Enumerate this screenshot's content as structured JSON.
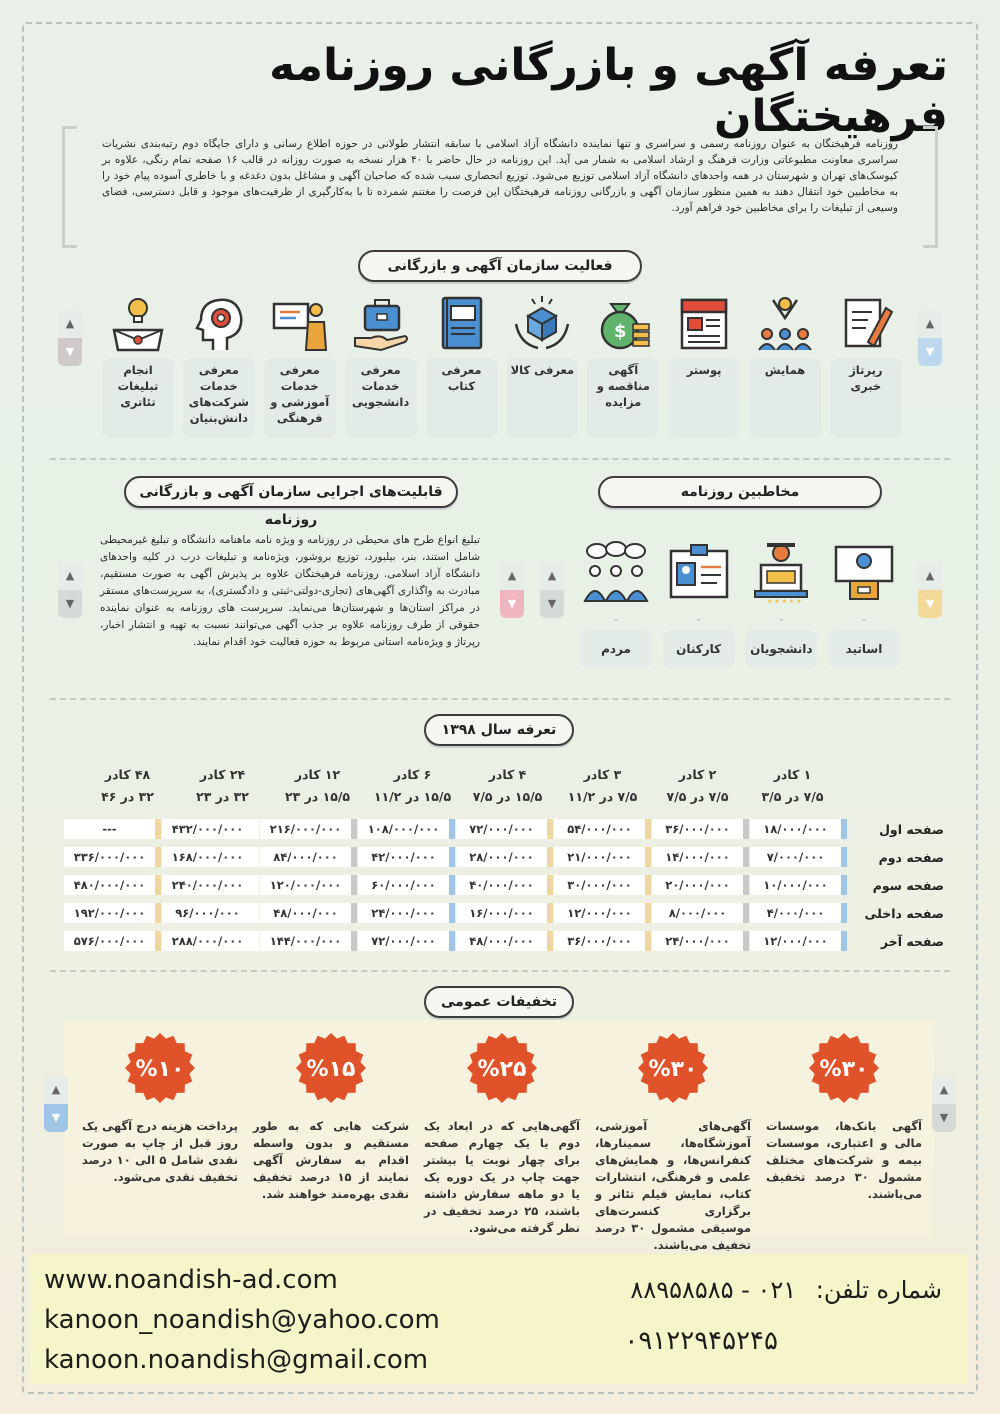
{
  "title": "تعرفه آگهی و بازرگانی روزنامه فرهیختگان",
  "intro": "روزنامه فرهیختگان به عنوان روزنامه رسمی و سراسری و تنها نماینده دانشگاه آزاد اسلامی با سابقه انتشار طولانی در حوزه اطلاع رسانی و دارای جایگاه دوم رتبه‌بندی نشریات سراسری معاونت مطبوعاتی وزارت فرهنگ و ارشاد اسلامی به شمار می آید. این روزنامه در حال حاضر با ۴۰ هزار نسخه به صورت روزانه در قالب ۱۶ صفحه تمام رنگی، علاوه بر کیوسک‌های تهران و شهرستان در همه واحدهای دانشگاه آزاد اسلامی توزیع می‌شود. توزیع انحصاری سبب شده که صاحبان آگهی و مشاغل بدون دغدغه و با خاطری آسوده پیام خود را به مخاطبین خود انتقال دهند به همین منظور سازمان آگهی و بازرگانی روزنامه فرهیختگان این فرصت را مغتنم شمرده تا با به‌کارگیری از ظرفیت‌های موجود و قابل دسترسی، فضای وسیعی از تبلیغات را برای مخاطبین خود فراهم آورد.",
  "activity": {
    "heading": "فعالیت سازمان آگهی و بازرگانی",
    "items": [
      {
        "label": "رپرتاژ خبری",
        "icon": "pen-paper-icon"
      },
      {
        "label": "همایش",
        "icon": "conference-people-icon"
      },
      {
        "label": "پوستر",
        "icon": "poster-icon"
      },
      {
        "label": "آگهی مناقصه و مزایده",
        "icon": "money-bag-icon"
      },
      {
        "label": "معرفی کالا",
        "icon": "product-hands-icon"
      },
      {
        "label": "معرفی کتاب",
        "icon": "book-icon"
      },
      {
        "label": "معرفی خدمات دانشجویی",
        "icon": "briefcase-hand-icon"
      },
      {
        "label": "معرفی خدمات آموزشی و فرهنگی",
        "icon": "teacher-board-icon"
      },
      {
        "label": "معرفی خدمات شرکت‌های دانش‌بنیان",
        "icon": "gear-head-icon"
      },
      {
        "label": "انجام تبلیغات تئاتری",
        "icon": "stage-bulb-icon"
      }
    ]
  },
  "capabilities": {
    "heading": "قابلیت‌های اجرایی سازمان آگهی و بازرگانی روزنامه",
    "text": "تبلیغ انواع طرح های محیطی در روزنامه و ویژه نامه ماهنامه دانشگاه و تبلیغ غیرمحیطی شامل استند، بنر، بیلبورد، توزیع بروشور، ویژه‌نامه و تبلیغات درب در کلیه واحدهای دانشگاه آزاد اسلامی. روزنامه فرهیختگان علاوه بر پذیرش آگهی به صورت مستقیم، مبادرت به واگذاری آگهی‌های (تجاری-دولتی-ثبتی و دادگستری)، به سرپرست‌های مستقر در مراکز استان‌ها و شهرستان‌ها می‌نماید. سرپرست های روزنامه به عنوان نماینده حقوقی از طرف روزنامه علاوه بر جذب آگهی می‌توانند نسبت به تهیه و انتشار اخبار، رپرتاژ و ویژه‌نامه استانی مربوط به حوزه فعالیت خود اقدام نمایند."
  },
  "audience": {
    "heading": "مخاطبین روزنامه",
    "items": [
      {
        "label": "اساتید",
        "icon": "lecturer-icon"
      },
      {
        "label": "دانشجویان",
        "icon": "student-laptop-icon"
      },
      {
        "label": "کارکنان",
        "icon": "id-card-icon"
      },
      {
        "label": "مردم",
        "icon": "people-chat-icon"
      }
    ]
  },
  "tariff": {
    "heading": "تعرفه سال ۱۳۹۸",
    "columns": [
      {
        "top": "۱ کادر",
        "size": "۷/۵ در ۳/۵"
      },
      {
        "top": "۲ کادر",
        "size": "۷/۵ در ۷/۵"
      },
      {
        "top": "۳ کادر",
        "size": "۷/۵ در ۱۱/۲"
      },
      {
        "top": "۴ کادر",
        "size": "۱۵/۵ در ۷/۵"
      },
      {
        "top": "۶ کادر",
        "size": "۱۵/۵ در ۱۱/۲"
      },
      {
        "top": "۱۲ کادر",
        "size": "۱۵/۵ در ۲۳"
      },
      {
        "top": "۲۴ کادر",
        "size": "۳۲ در ۲۳"
      },
      {
        "top": "۴۸ کادر",
        "size": "۳۲ در ۴۶"
      }
    ],
    "rows": [
      {
        "label": "صفحه اول",
        "values": [
          "۱۸/۰۰۰/۰۰۰",
          "۳۶/۰۰۰/۰۰۰",
          "۵۴/۰۰۰/۰۰۰",
          "۷۲/۰۰۰/۰۰۰",
          "۱۰۸/۰۰۰/۰۰۰",
          "۲۱۶/۰۰۰/۰۰۰",
          "۴۳۲/۰۰۰/۰۰۰",
          "---"
        ]
      },
      {
        "label": "صفحه دوم",
        "values": [
          "۷/۰۰۰/۰۰۰",
          "۱۴/۰۰۰/۰۰۰",
          "۲۱/۰۰۰/۰۰۰",
          "۲۸/۰۰۰/۰۰۰",
          "۴۲/۰۰۰/۰۰۰",
          "۸۴/۰۰۰/۰۰۰",
          "۱۶۸/۰۰۰/۰۰۰",
          "۳۳۶/۰۰۰/۰۰۰"
        ]
      },
      {
        "label": "صفحه سوم",
        "values": [
          "۱۰/۰۰۰/۰۰۰",
          "۲۰/۰۰۰/۰۰۰",
          "۳۰/۰۰۰/۰۰۰",
          "۴۰/۰۰۰/۰۰۰",
          "۶۰/۰۰۰/۰۰۰",
          "۱۲۰/۰۰۰/۰۰۰",
          "۲۴۰/۰۰۰/۰۰۰",
          "۴۸۰/۰۰۰/۰۰۰"
        ]
      },
      {
        "label": "صفحه داخلی",
        "values": [
          "۴/۰۰۰/۰۰۰",
          "۸/۰۰۰/۰۰۰",
          "۱۲/۰۰۰/۰۰۰",
          "۱۶/۰۰۰/۰۰۰",
          "۲۴/۰۰۰/۰۰۰",
          "۴۸/۰۰۰/۰۰۰",
          "۹۶/۰۰۰/۰۰۰",
          "۱۹۲/۰۰۰/۰۰۰"
        ]
      },
      {
        "label": "صفحه آخر",
        "values": [
          "۱۲/۰۰۰/۰۰۰",
          "۲۴/۰۰۰/۰۰۰",
          "۳۶/۰۰۰/۰۰۰",
          "۴۸/۰۰۰/۰۰۰",
          "۷۲/۰۰۰/۰۰۰",
          "۱۴۴/۰۰۰/۰۰۰",
          "۲۸۸/۰۰۰/۰۰۰",
          "۵۷۶/۰۰۰/۰۰۰"
        ]
      }
    ],
    "column_colors": [
      "#9fc6e6",
      "#c9c9c9",
      "#f0d7a0",
      "#f0d7a0",
      "#9fc6e6",
      "#c9c9c9",
      "#ffffff",
      "#f0d7a0"
    ]
  },
  "discounts": {
    "heading": "تخفیفات عمومی",
    "items": [
      {
        "badge": "%۳۰",
        "text": "آگهی بانک‌ها، موسسات مالی و اعتباری، موسسات بیمه و شرکت‌های مختلف مشمول ۳۰ درصد تخفیف می‌باشند."
      },
      {
        "badge": "%۳۰",
        "text": "آگهی‌های آموزشی، آموزشگاه‌ها، سمینارها، کنفرانس‌ها، و همایش‌های علمی و فرهنگی، انتشارات کتاب، نمایش فیلم تئاتر و برگزاری کنسرت‌های موسیقی مشمول ۳۰ درصد تخفیف می‌باشند."
      },
      {
        "badge": "%۲۵",
        "text": "آگهی‌هایی که در ابعاد یک دوم یا یک چهارم صفحه برای چهار نوبت یا بیشتر جهت چاپ در یک دوره یک یا دو ماهه سفارش داشته باشند، ۲۵ درصد تخفیف در نظر گرفته می‌شود."
      },
      {
        "badge": "%۱۵",
        "text": "شرکت هایی که به طور مستقیم و بدون واسطه اقدام به سفارش آگهی نمایند از ۱۵ درصد تخفیف نقدی بهره‌مند خواهند شد."
      },
      {
        "badge": "%۱۰",
        "text": "پرداخت هزینه درج آگهی یک روز قبل از چاپ به صورت نقدی شامل ۵ الی ۱۰ درصد تخفیف نقدی می‌شود."
      }
    ],
    "badge_color": "#e0532a"
  },
  "contact": {
    "website": "www.noandish-ad.com",
    "email1": "kanoon_noandish@yahoo.com",
    "email2": "kanoon.noandish@gmail.com",
    "phone_label": "شماره تلفن:",
    "phone": "۸۸۹۵۸۵۸۵ - ۰۲۱",
    "mobile": "۰۹۱۲۲۹۴۵۲۴۵"
  }
}
